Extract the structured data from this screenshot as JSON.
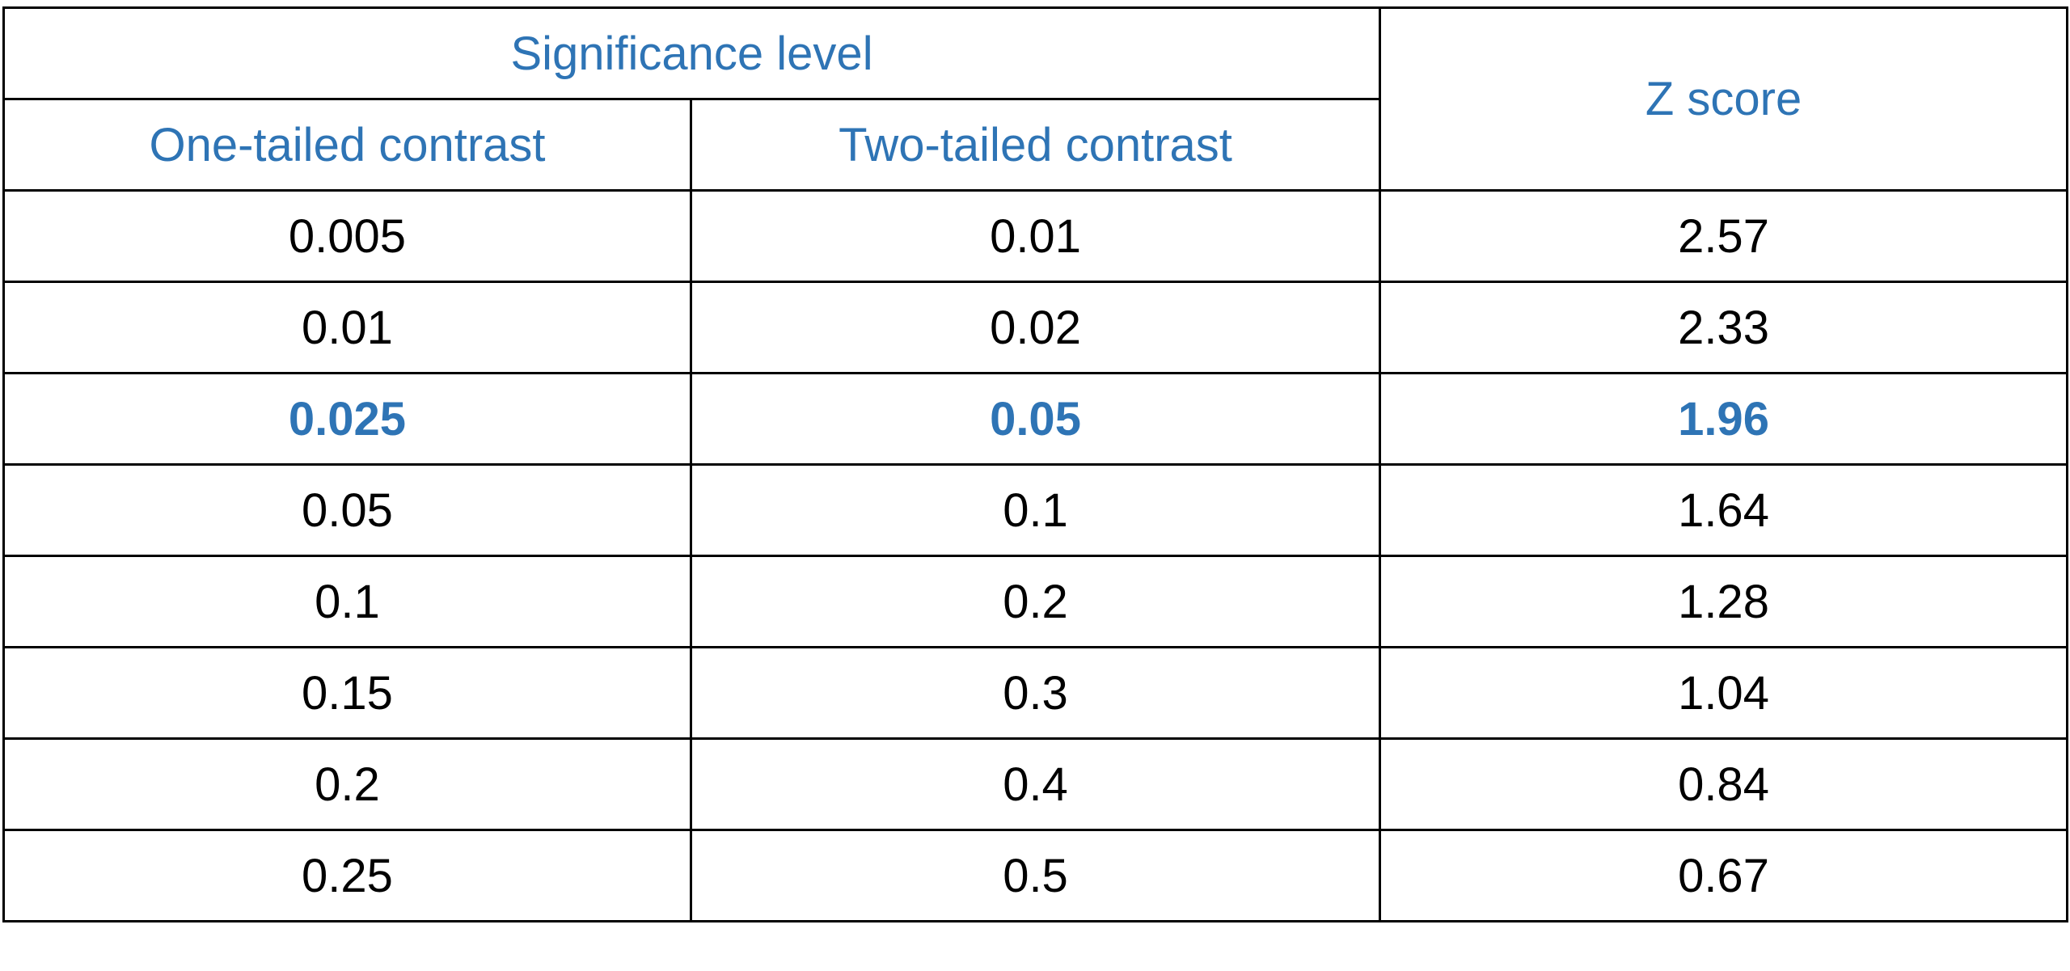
{
  "table": {
    "header": {
      "group": "Significance level",
      "columns": [
        "One-tailed contrast",
        "Two-tailed contrast"
      ],
      "z": "Z score"
    },
    "rows": [
      [
        "0.005",
        "0.01",
        "2.57"
      ],
      [
        "0.01",
        "0.02",
        "2.33"
      ],
      [
        "0.025",
        "0.05",
        "1.96"
      ],
      [
        "0.05",
        "0.1",
        "1.64"
      ],
      [
        "0.1",
        "0.2",
        "1.28"
      ],
      [
        "0.15",
        "0.3",
        "1.04"
      ],
      [
        "0.2",
        "0.4",
        "0.84"
      ],
      [
        "0.25",
        "0.5",
        "0.67"
      ]
    ],
    "highlighted_row": 2
  }
}
